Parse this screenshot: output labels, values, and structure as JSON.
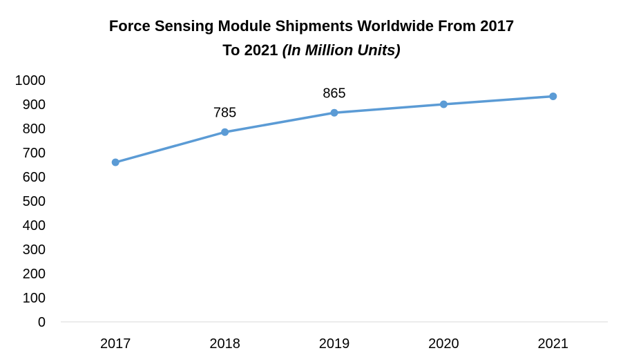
{
  "chart_data": {
    "type": "line",
    "title_line1": "Force Sensing Module Shipments Worldwide From 2017",
    "title_line2": "To 2021 ",
    "title_italic": "(In Million Units)",
    "categories": [
      "2017",
      "2018",
      "2019",
      "2020",
      "2021"
    ],
    "series": [
      {
        "values": [
          660,
          785,
          865,
          900,
          933
        ],
        "color": "#5B9BD5"
      }
    ],
    "data_labels": [
      null,
      "785",
      "865",
      null,
      null
    ],
    "ylim": [
      0,
      1000
    ],
    "yticks": [
      "0",
      "100",
      "200",
      "300",
      "400",
      "500",
      "600",
      "700",
      "800",
      "900",
      "1000"
    ],
    "grid": false,
    "legend": "none"
  }
}
